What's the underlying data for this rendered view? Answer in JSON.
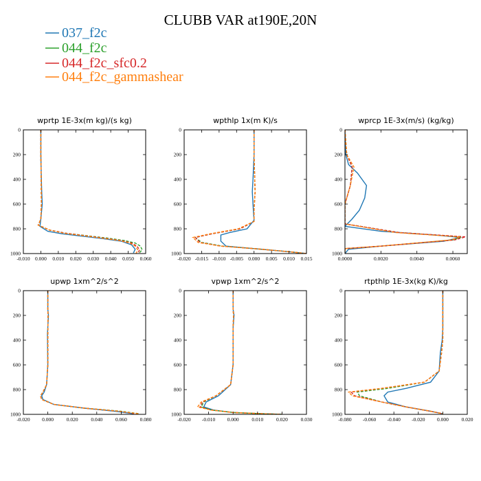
{
  "figure": {
    "title": "CLUBB VAR at190E,20N",
    "legend": [
      {
        "name": "037_f2c",
        "color": "#1f77b4",
        "dashed": false
      },
      {
        "name": "044_f2c",
        "color": "#2ca02c",
        "dashed": true
      },
      {
        "name": "044_f2c_sfc0.2",
        "color": "#d62728",
        "dashed": true
      },
      {
        "name": "044_f2c_gammashear",
        "color": "#ff7f0e",
        "dashed": true
      }
    ]
  },
  "chart_data": [
    {
      "type": "line",
      "title": "wprtp  1E-3x(m kg)/(s kg)",
      "xlim": [
        -0.01,
        0.06
      ],
      "ylim": [
        1000,
        0
      ],
      "xticks": [
        -0.01,
        0.0,
        0.01,
        0.02,
        0.03,
        0.04,
        0.05,
        0.06
      ],
      "xtick_labels": [
        "-0.010",
        "0.000",
        "0.010",
        "0.020",
        "0.030",
        "0.040",
        "0.050",
        "0.060"
      ],
      "yticks": [
        0,
        200,
        400,
        600,
        800,
        1000
      ],
      "ytick_labels": [
        "0",
        "200",
        "400",
        "600",
        "800",
        "1000"
      ],
      "series": [
        {
          "name": "037_f2c",
          "x": [
            0.0,
            0.0,
            0.0003,
            0.0005,
            0.0008,
            0.0,
            -0.0005,
            0.004,
            0.012,
            0.024,
            0.036,
            0.046,
            0.052,
            0.054,
            0.053
          ],
          "y": [
            0,
            200,
            400,
            500,
            600,
            720,
            780,
            820,
            840,
            860,
            880,
            900,
            930,
            965,
            995
          ]
        },
        {
          "name": "044_f2c",
          "x": [
            0.0,
            0.0,
            0.0002,
            0.0003,
            0.0,
            -0.0015,
            0.005,
            0.014,
            0.026,
            0.038,
            0.048,
            0.054,
            0.057,
            0.058,
            0.056
          ],
          "y": [
            0,
            200,
            400,
            600,
            720,
            770,
            810,
            835,
            855,
            875,
            895,
            915,
            940,
            970,
            1000
          ]
        },
        {
          "name": "044_f2c_sfc0.2",
          "x": [
            0.0,
            0.0,
            0.0002,
            0.0003,
            0.0,
            -0.0015,
            0.005,
            0.014,
            0.025,
            0.036,
            0.046,
            0.052,
            0.055,
            0.0565,
            0.0555
          ],
          "y": [
            0,
            200,
            400,
            600,
            720,
            770,
            810,
            835,
            855,
            875,
            895,
            915,
            940,
            970,
            1000
          ]
        },
        {
          "name": "044_f2c_gammashear",
          "x": [
            0.0,
            0.0,
            0.0002,
            0.0003,
            0.0,
            -0.0015,
            0.005,
            0.013,
            0.024,
            0.035,
            0.045,
            0.051,
            0.054,
            0.0555,
            0.0545
          ],
          "y": [
            0,
            200,
            400,
            600,
            720,
            770,
            810,
            835,
            855,
            875,
            895,
            915,
            940,
            970,
            1000
          ]
        }
      ]
    },
    {
      "type": "line",
      "title": "wpthlp  1x(m K)/s",
      "xlim": [
        -0.02,
        0.015
      ],
      "ylim": [
        1000,
        0
      ],
      "xticks": [
        -0.02,
        -0.015,
        -0.01,
        -0.005,
        0.0,
        0.005,
        0.01,
        0.015
      ],
      "xtick_labels": [
        "-0.020",
        "-0.015",
        "-0.010",
        "-0.005",
        "0.000",
        "0.005",
        "0.010",
        "0.015"
      ],
      "yticks": [
        0,
        200,
        400,
        600,
        800,
        1000
      ],
      "ytick_labels": [
        "0",
        "200",
        "400",
        "600",
        "800",
        "1000"
      ],
      "series": [
        {
          "name": "037_f2c",
          "x": [
            0.0,
            0.0,
            -0.0003,
            -0.0005,
            -0.0002,
            0.0,
            -0.002,
            -0.007,
            -0.0095,
            -0.0095,
            -0.008,
            0.0,
            0.01,
            0.015
          ],
          "y": [
            0,
            200,
            400,
            500,
            650,
            730,
            800,
            830,
            850,
            900,
            940,
            960,
            985,
            1000
          ]
        },
        {
          "name": "044_f2c",
          "x": [
            0.0,
            0.0,
            0.0002,
            0.0003,
            0.0,
            0.0,
            -0.004,
            -0.012,
            -0.0168,
            -0.015,
            -0.009,
            0.0,
            0.01,
            0.015
          ],
          "y": [
            0,
            200,
            400,
            500,
            650,
            740,
            800,
            840,
            870,
            910,
            940,
            960,
            985,
            1000
          ]
        },
        {
          "name": "044_f2c_sfc0.2",
          "x": [
            0.0,
            0.0,
            0.0002,
            0.0003,
            0.0,
            0.0,
            -0.004,
            -0.012,
            -0.0168,
            -0.0155,
            -0.0095,
            0.0,
            0.01,
            0.015
          ],
          "y": [
            0,
            200,
            400,
            500,
            650,
            740,
            800,
            840,
            870,
            910,
            940,
            960,
            985,
            1000
          ]
        },
        {
          "name": "044_f2c_gammashear",
          "x": [
            0.0,
            0.0,
            0.0002,
            0.0003,
            0.0,
            0.0,
            -0.0045,
            -0.0125,
            -0.0175,
            -0.016,
            -0.0095,
            0.0,
            0.01,
            0.015
          ],
          "y": [
            0,
            200,
            400,
            500,
            650,
            740,
            800,
            840,
            870,
            910,
            940,
            960,
            985,
            1000
          ]
        }
      ]
    },
    {
      "type": "line",
      "title": "wprcp  1E-3x(m/s) (kg/kg)",
      "xlim": [
        0.0,
        0.0068
      ],
      "ylim": [
        1000,
        0
      ],
      "xticks": [
        0.0,
        0.002,
        0.004,
        0.006
      ],
      "xtick_labels": [
        "0.0000",
        "0.0020",
        "0.0040",
        "0.0060"
      ],
      "yticks": [
        0,
        200,
        400,
        600,
        800,
        1000
      ],
      "ytick_labels": [
        "0",
        "200",
        "400",
        "600",
        "800",
        "1000"
      ],
      "series": [
        {
          "name": "037_f2c",
          "x": [
            0.0,
            5e-05,
            0.0002,
            0.0007,
            0.0012,
            0.0011,
            0.0008,
            0.0004,
            0.0,
            0.002,
            0.005,
            0.0064,
            0.0055,
            0.002,
            0.0002,
            0.0
          ],
          "y": [
            0,
            200,
            280,
            350,
            450,
            550,
            650,
            720,
            780,
            820,
            850,
            870,
            900,
            940,
            965,
            1000
          ]
        },
        {
          "name": "044_f2c",
          "x": [
            0.0,
            0.0001,
            0.0004,
            0.0003,
            0.0,
            0.0,
            0.003,
            0.0065,
            0.006,
            0.002,
            0.0,
            0.0
          ],
          "y": [
            0,
            200,
            300,
            450,
            600,
            760,
            830,
            865,
            890,
            940,
            960,
            1000
          ]
        },
        {
          "name": "044_f2c_sfc0.2",
          "x": [
            0.0,
            0.0001,
            0.0004,
            0.0003,
            0.0,
            0.0,
            0.003,
            0.0067,
            0.0061,
            0.002,
            0.0,
            0.0
          ],
          "y": [
            0,
            200,
            300,
            450,
            600,
            760,
            830,
            865,
            890,
            940,
            960,
            1000
          ]
        },
        {
          "name": "044_f2c_gammashear",
          "x": [
            0.0,
            0.0001,
            0.0005,
            0.0003,
            0.0,
            0.0,
            0.0028,
            0.0064,
            0.0059,
            0.002,
            0.0,
            0.0
          ],
          "y": [
            0,
            200,
            300,
            450,
            600,
            760,
            830,
            865,
            890,
            940,
            960,
            1000
          ]
        }
      ]
    },
    {
      "type": "line",
      "title": "upwp  1xm^2/s^2",
      "xlim": [
        -0.02,
        0.08
      ],
      "ylim": [
        1000,
        0
      ],
      "xticks": [
        -0.02,
        0.0,
        0.02,
        0.04,
        0.06,
        0.08
      ],
      "xtick_labels": [
        "-0.020",
        "0.000",
        "0.020",
        "0.040",
        "0.060",
        "0.080"
      ],
      "yticks": [
        0,
        200,
        400,
        600,
        800,
        1000
      ],
      "ytick_labels": [
        "0",
        "200",
        "400",
        "600",
        "800",
        "1000"
      ],
      "series": [
        {
          "name": "037_f2c",
          "x": [
            0.0,
            0.0,
            0.0005,
            -0.0003,
            0.0,
            -0.001,
            -0.003,
            -0.005,
            -0.004,
            0.005,
            0.03,
            0.055,
            0.07
          ],
          "y": [
            0,
            150,
            200,
            350,
            600,
            760,
            820,
            850,
            880,
            920,
            950,
            975,
            995
          ]
        },
        {
          "name": "044_f2c",
          "x": [
            0.0,
            0.0,
            0.0002,
            0.0,
            0.0,
            -0.001,
            -0.004,
            -0.006,
            -0.005,
            0.005,
            0.03,
            0.06,
            0.075
          ],
          "y": [
            0,
            150,
            200,
            350,
            600,
            760,
            820,
            850,
            880,
            920,
            950,
            975,
            995
          ]
        },
        {
          "name": "044_f2c_sfc0.2",
          "x": [
            0.0,
            0.0,
            0.0002,
            0.0,
            0.0,
            -0.001,
            -0.004,
            -0.006,
            -0.005,
            0.005,
            0.03,
            0.058,
            0.072
          ],
          "y": [
            0,
            150,
            200,
            350,
            600,
            760,
            820,
            850,
            880,
            920,
            950,
            975,
            995
          ]
        },
        {
          "name": "044_f2c_gammashear",
          "x": [
            0.0,
            0.0,
            0.0002,
            0.0,
            0.0,
            -0.001,
            -0.004,
            -0.006,
            -0.005,
            0.005,
            0.03,
            0.058,
            0.074
          ],
          "y": [
            0,
            150,
            200,
            350,
            600,
            760,
            820,
            850,
            880,
            920,
            950,
            975,
            995
          ]
        }
      ]
    },
    {
      "type": "line",
      "title": "vpwp  1xm^2/s^2",
      "xlim": [
        -0.02,
        0.03
      ],
      "ylim": [
        1000,
        0
      ],
      "xticks": [
        -0.02,
        -0.01,
        0.0,
        0.01,
        0.02,
        0.03
      ],
      "xtick_labels": [
        "-0.020",
        "-0.010",
        "0.000",
        "0.010",
        "0.020",
        "0.030"
      ],
      "yticks": [
        0,
        200,
        400,
        600,
        800,
        1000
      ],
      "ytick_labels": [
        "0",
        "200",
        "400",
        "600",
        "800",
        "1000"
      ],
      "series": [
        {
          "name": "037_f2c",
          "x": [
            0.0,
            0.0,
            0.0004,
            0.0,
            0.0,
            -0.001,
            -0.006,
            -0.011,
            -0.012,
            -0.008,
            0.0,
            0.012,
            0.02
          ],
          "y": [
            0,
            150,
            200,
            300,
            600,
            760,
            850,
            900,
            940,
            965,
            985,
            995,
            1000
          ]
        },
        {
          "name": "044_f2c",
          "x": [
            0.0,
            0.0,
            0.0002,
            0.0,
            0.0,
            -0.001,
            -0.007,
            -0.012,
            -0.013,
            -0.009,
            0.0,
            0.012,
            0.02
          ],
          "y": [
            0,
            150,
            200,
            300,
            600,
            760,
            850,
            900,
            940,
            965,
            985,
            995,
            1000
          ]
        },
        {
          "name": "044_f2c_sfc0.2",
          "x": [
            0.0,
            0.0,
            0.0002,
            0.0,
            0.0,
            -0.001,
            -0.007,
            -0.0125,
            -0.0135,
            -0.009,
            0.0,
            0.012,
            0.02
          ],
          "y": [
            0,
            150,
            200,
            300,
            600,
            760,
            850,
            900,
            940,
            965,
            985,
            995,
            1000
          ]
        },
        {
          "name": "044_f2c_gammashear",
          "x": [
            0.0,
            0.0,
            0.0002,
            0.0,
            0.0,
            -0.001,
            -0.007,
            -0.013,
            -0.0145,
            -0.009,
            0.0,
            0.012,
            0.02
          ],
          "y": [
            0,
            150,
            200,
            300,
            600,
            760,
            850,
            900,
            940,
            965,
            985,
            995,
            1000
          ]
        }
      ]
    },
    {
      "type": "line",
      "title": "rtpthlp  1E-3x(kg K)/kg",
      "xlim": [
        -0.08,
        0.02
      ],
      "ylim": [
        1000,
        0
      ],
      "xticks": [
        -0.08,
        -0.06,
        -0.04,
        -0.02,
        0.0,
        0.02
      ],
      "xtick_labels": [
        "-0.080",
        "-0.060",
        "-0.040",
        "-0.020",
        "0.000",
        "0.020"
      ],
      "yticks": [
        0,
        200,
        400,
        600,
        800,
        1000
      ],
      "ytick_labels": [
        "0",
        "200",
        "400",
        "600",
        "800",
        "1000"
      ],
      "series": [
        {
          "name": "037_f2c",
          "x": [
            0.0,
            0.0,
            -0.0005,
            -0.002,
            -0.003,
            -0.01,
            -0.03,
            -0.045,
            -0.048,
            -0.045,
            -0.03,
            -0.01,
            0.0
          ],
          "y": [
            0,
            300,
            400,
            500,
            650,
            740,
            790,
            820,
            850,
            900,
            940,
            975,
            995
          ]
        },
        {
          "name": "044_f2c",
          "x": [
            0.0,
            0.0,
            0.0,
            -0.001,
            -0.003,
            -0.015,
            -0.045,
            -0.07,
            -0.068,
            -0.05,
            -0.03,
            -0.01,
            0.0
          ],
          "y": [
            0,
            300,
            400,
            500,
            650,
            740,
            790,
            820,
            850,
            900,
            940,
            975,
            995
          ]
        },
        {
          "name": "044_f2c_sfc0.2",
          "x": [
            0.0,
            0.0,
            0.0,
            -0.001,
            -0.003,
            -0.015,
            -0.05,
            -0.075,
            -0.072,
            -0.05,
            -0.03,
            -0.01,
            0.0
          ],
          "y": [
            0,
            300,
            400,
            500,
            650,
            740,
            790,
            820,
            850,
            900,
            940,
            975,
            995
          ]
        },
        {
          "name": "044_f2c_gammashear",
          "x": [
            0.0,
            0.0,
            0.0,
            -0.001,
            -0.003,
            -0.015,
            -0.05,
            -0.077,
            -0.074,
            -0.05,
            -0.03,
            -0.01,
            0.0
          ],
          "y": [
            0,
            300,
            400,
            500,
            650,
            740,
            790,
            820,
            850,
            900,
            940,
            975,
            995
          ]
        }
      ]
    }
  ]
}
